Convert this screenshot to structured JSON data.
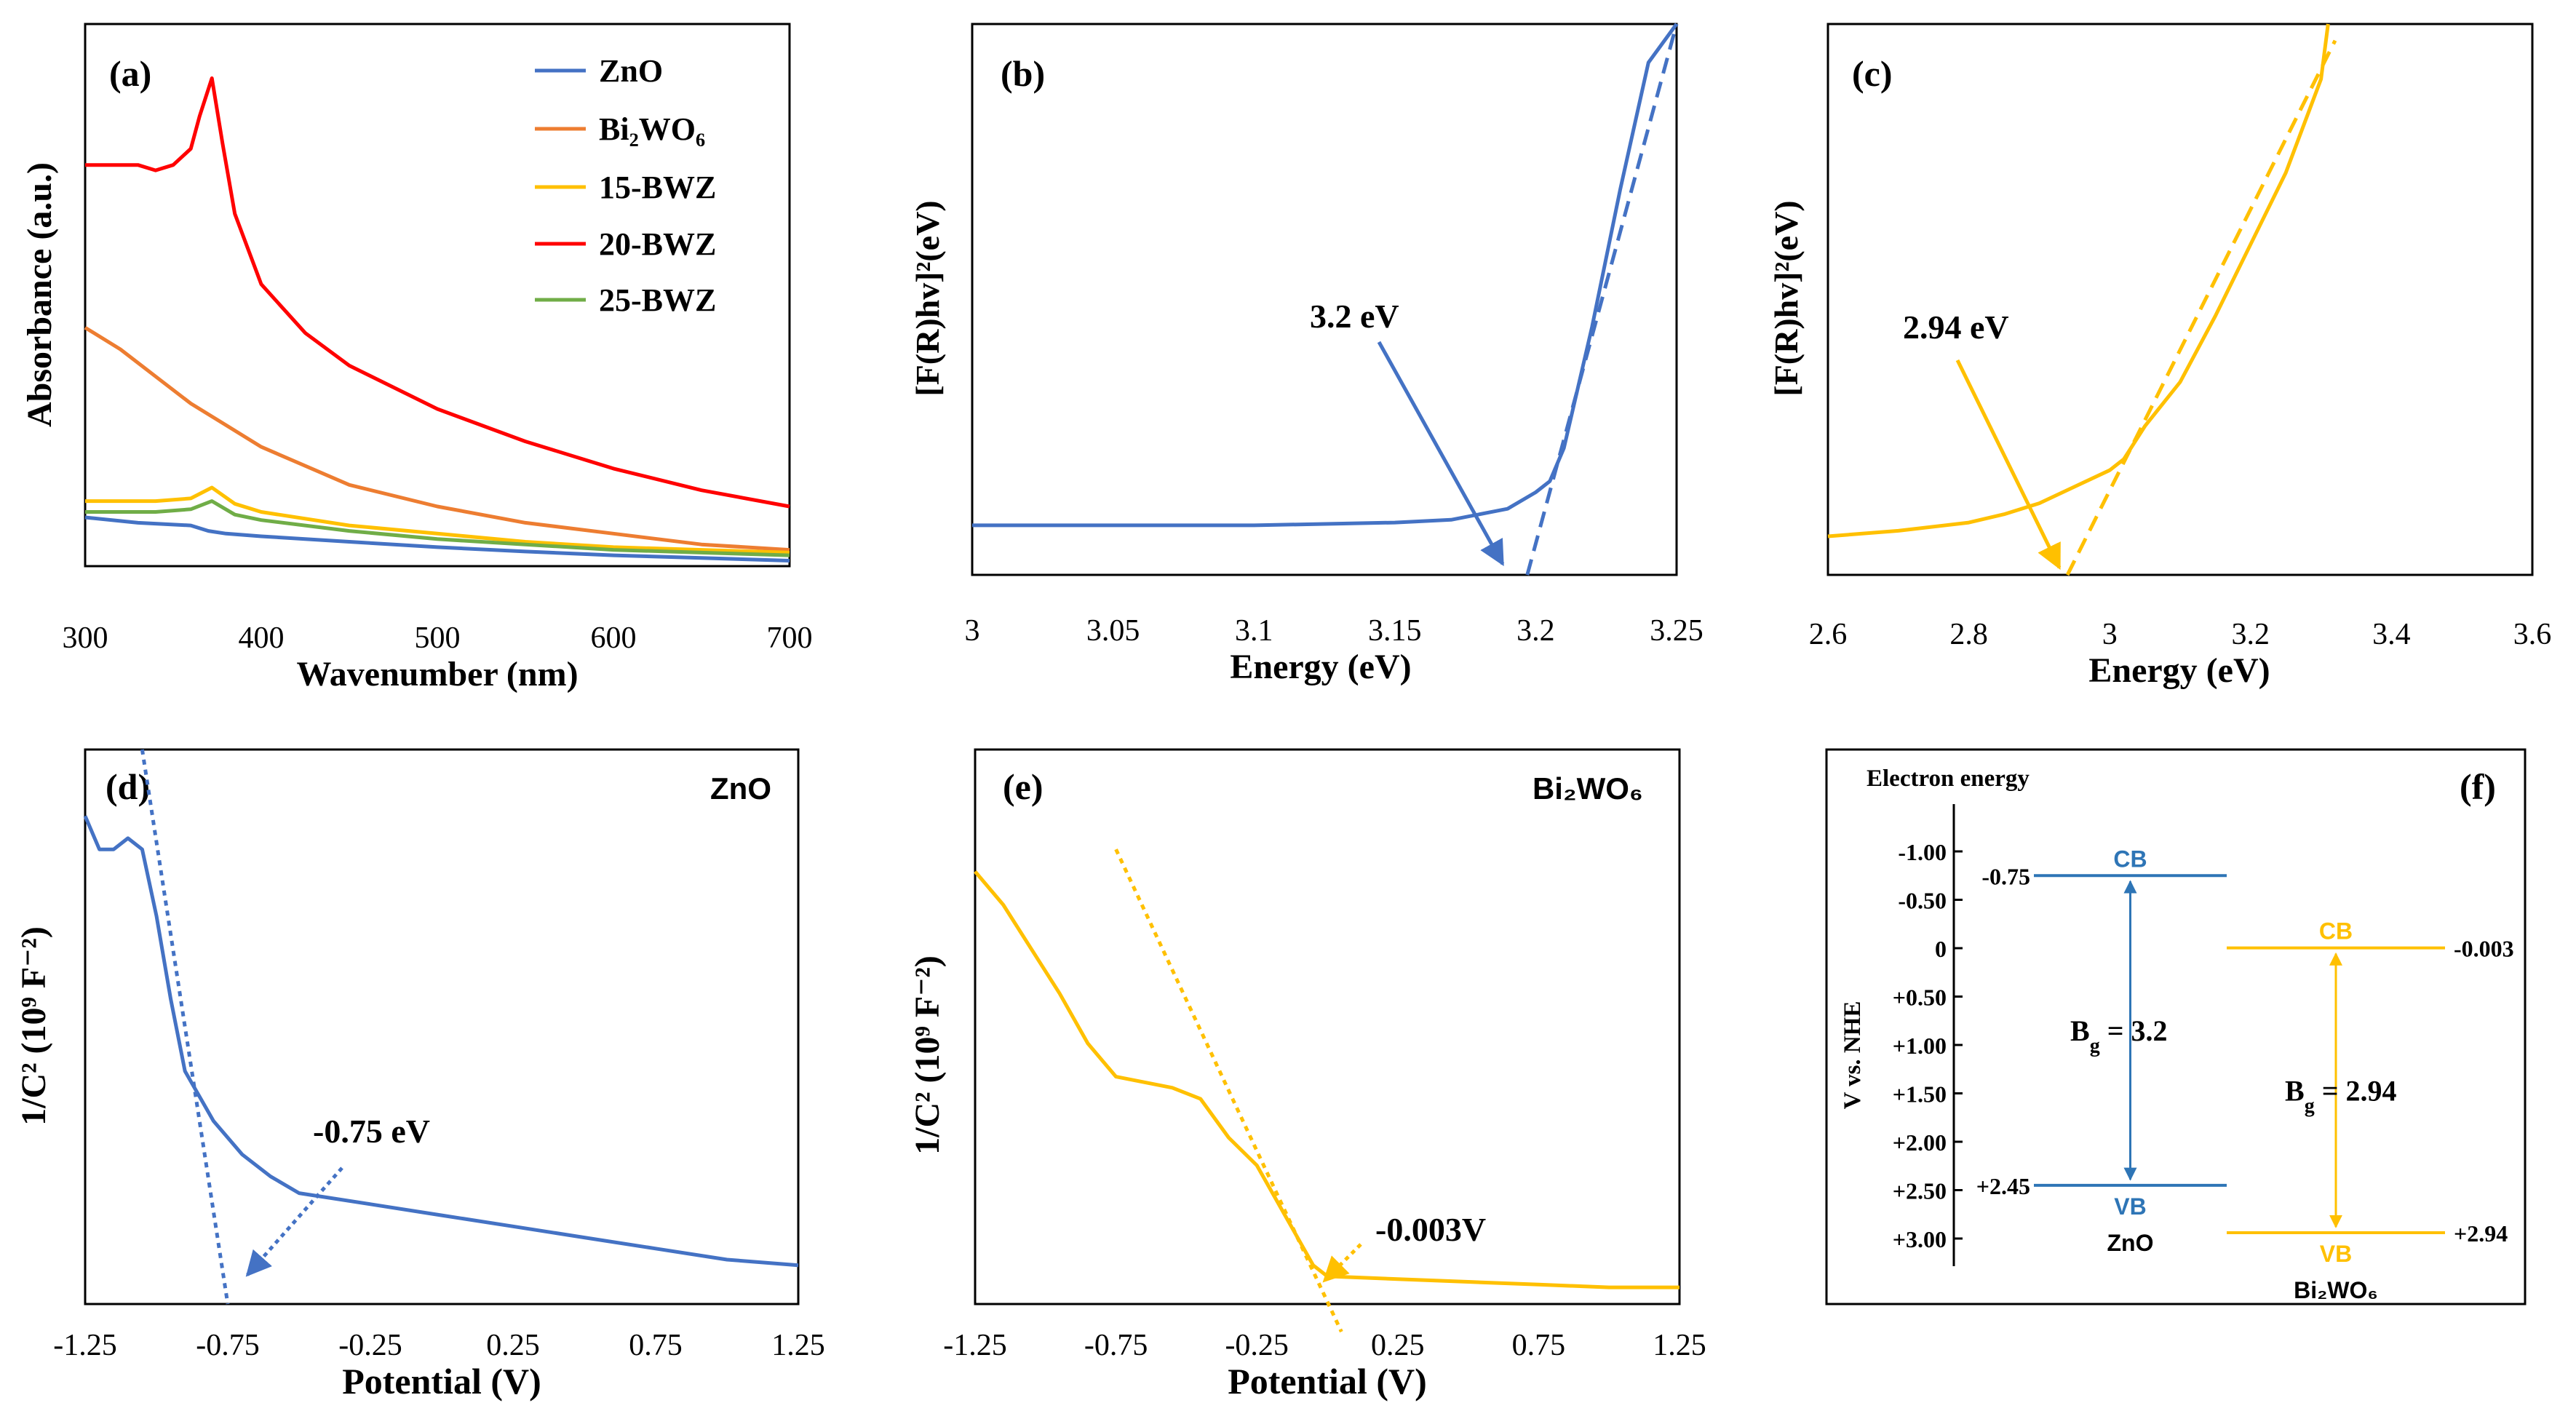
{
  "colors": {
    "zno": "#4472C4",
    "bi2wo6": "#ED7D31",
    "bwz15": "#FFC000",
    "bwz20": "#FF0000",
    "bwz25": "#70AD47",
    "axis": "#000000"
  },
  "chart_data": [
    {
      "panel": "a",
      "type": "line",
      "panel_label": "(a)",
      "xlabel": "Wavenumber (nm)",
      "ylabel": "Absorbance (a.u.)",
      "xlim": [
        300,
        700
      ],
      "ylim": [
        0,
        1
      ],
      "xticks": [
        "300",
        "400",
        "500",
        "600",
        "700"
      ],
      "legend": [
        "ZnO",
        "Bi₂WO₆",
        "15-BWZ",
        "20-BWZ",
        "25-BWZ"
      ],
      "series": [
        {
          "name": "ZnO",
          "x": [
            300,
            330,
            360,
            370,
            380,
            400,
            450,
            500,
            550,
            600,
            650,
            700
          ],
          "y": [
            0.09,
            0.08,
            0.075,
            0.065,
            0.06,
            0.055,
            0.045,
            0.035,
            0.027,
            0.02,
            0.015,
            0.01
          ]
        },
        {
          "name": "Bi2WO6",
          "x": [
            300,
            320,
            340,
            360,
            380,
            400,
            450,
            500,
            550,
            600,
            650,
            700
          ],
          "y": [
            0.44,
            0.4,
            0.35,
            0.3,
            0.26,
            0.22,
            0.15,
            0.11,
            0.08,
            0.06,
            0.04,
            0.03
          ]
        },
        {
          "name": "15-BWZ",
          "x": [
            300,
            340,
            360,
            372,
            385,
            400,
            450,
            500,
            550,
            600,
            650,
            700
          ],
          "y": [
            0.12,
            0.12,
            0.125,
            0.145,
            0.115,
            0.1,
            0.075,
            0.06,
            0.045,
            0.035,
            0.03,
            0.025
          ]
        },
        {
          "name": "20-BWZ",
          "x": [
            300,
            330,
            340,
            350,
            360,
            365,
            372,
            378,
            385,
            400,
            425,
            450,
            500,
            550,
            600,
            650,
            700
          ],
          "y": [
            0.74,
            0.74,
            0.73,
            0.74,
            0.77,
            0.83,
            0.9,
            0.78,
            0.65,
            0.52,
            0.43,
            0.37,
            0.29,
            0.23,
            0.18,
            0.14,
            0.11
          ]
        },
        {
          "name": "25-BWZ",
          "x": [
            300,
            340,
            360,
            372,
            385,
            400,
            450,
            500,
            550,
            600,
            650,
            700
          ],
          "y": [
            0.1,
            0.1,
            0.105,
            0.12,
            0.095,
            0.085,
            0.065,
            0.05,
            0.04,
            0.03,
            0.025,
            0.02
          ]
        }
      ]
    },
    {
      "panel": "b",
      "type": "line",
      "panel_label": "(b)",
      "xlabel": "Energy (eV)",
      "ylabel": "[F(R)hv]²(eV)",
      "xlim": [
        3.0,
        3.25
      ],
      "ylim": [
        0,
        1
      ],
      "xticks": [
        "3",
        "3.05",
        "3.1",
        "3.15",
        "3.2",
        "3.25"
      ],
      "annotation": "3.2 eV",
      "series": [
        {
          "name": "ZnO",
          "x": [
            3.0,
            3.05,
            3.1,
            3.15,
            3.17,
            3.19,
            3.2,
            3.205,
            3.21,
            3.22,
            3.23,
            3.24,
            3.25
          ],
          "y": [
            0.09,
            0.09,
            0.09,
            0.095,
            0.1,
            0.12,
            0.15,
            0.17,
            0.23,
            0.45,
            0.7,
            0.93,
            1.0
          ]
        },
        {
          "name": "Tangent",
          "x": [
            3.197,
            3.25
          ],
          "y": [
            0.0,
            1.0
          ]
        }
      ]
    },
    {
      "panel": "c",
      "type": "line",
      "panel_label": "(c)",
      "xlabel": "Energy (eV)",
      "ylabel": "[F(R)hv]²(eV)",
      "xlim": [
        2.6,
        3.6
      ],
      "ylim": [
        0,
        1
      ],
      "xticks": [
        "2.6",
        "2.8",
        "3",
        "3.2",
        "3.4",
        "3.6"
      ],
      "annotation": "2.94 eV",
      "series": [
        {
          "name": "Bi2WO6",
          "x": [
            2.6,
            2.7,
            2.8,
            2.85,
            2.9,
            2.95,
            3.0,
            3.02,
            3.05,
            3.1,
            3.15,
            3.2,
            3.25,
            3.3,
            3.31
          ],
          "y": [
            0.07,
            0.08,
            0.095,
            0.11,
            0.13,
            0.16,
            0.19,
            0.21,
            0.27,
            0.35,
            0.47,
            0.6,
            0.73,
            0.9,
            1.0
          ]
        },
        {
          "name": "Tangent",
          "x": [
            2.94,
            3.32
          ],
          "y": [
            0.0,
            0.97
          ]
        }
      ]
    },
    {
      "panel": "d",
      "type": "line",
      "panel_label": "(d)",
      "material": "ZnO",
      "xlabel": "Potential (V)",
      "ylabel": "1/C² (10⁹ F⁻²)",
      "xlim": [
        -1.25,
        1.25
      ],
      "ylim": [
        0,
        1
      ],
      "xticks": [
        "-1.25",
        "-0.75",
        "-0.25",
        "0.25",
        "0.75",
        "1.25"
      ],
      "annotation": "-0.75 eV",
      "series": [
        {
          "name": "ZnO",
          "x": [
            -1.25,
            -1.2,
            -1.15,
            -1.1,
            -1.05,
            -1.0,
            -0.95,
            -0.9,
            -0.8,
            -0.7,
            -0.6,
            -0.5,
            -0.25,
            0.0,
            0.25,
            0.5,
            0.75,
            1.0,
            1.25
          ],
          "y": [
            0.88,
            0.82,
            0.82,
            0.84,
            0.82,
            0.7,
            0.55,
            0.42,
            0.33,
            0.27,
            0.23,
            0.2,
            0.18,
            0.16,
            0.14,
            0.12,
            0.1,
            0.08,
            0.07
          ]
        },
        {
          "name": "Tangent",
          "x": [
            -1.05,
            -0.75
          ],
          "y": [
            1.0,
            0.0
          ]
        }
      ]
    },
    {
      "panel": "e",
      "type": "line",
      "panel_label": "(e)",
      "material": "Bi₂WO₆",
      "xlabel": "Potential (V)",
      "ylabel": "1/C² (10⁹ F⁻²)",
      "xlim": [
        -1.25,
        1.25
      ],
      "ylim": [
        0,
        1
      ],
      "xticks": [
        "-1.25",
        "-0.75",
        "-0.25",
        "0.25",
        "0.75",
        "1.25"
      ],
      "annotation": "-0.003V",
      "series": [
        {
          "name": "Bi2WO6",
          "x": [
            -1.25,
            -1.15,
            -1.05,
            -0.95,
            -0.85,
            -0.75,
            -0.65,
            -0.55,
            -0.45,
            -0.35,
            -0.25,
            -0.15,
            -0.05,
            0.0,
            0.25,
            0.5,
            0.75,
            1.0,
            1.25
          ],
          "y": [
            0.78,
            0.72,
            0.64,
            0.56,
            0.47,
            0.41,
            0.4,
            0.39,
            0.37,
            0.3,
            0.25,
            0.16,
            0.07,
            0.05,
            0.045,
            0.04,
            0.035,
            0.03,
            0.03
          ]
        },
        {
          "name": "Tangent",
          "x": [
            -0.75,
            0.05
          ],
          "y": [
            0.82,
            -0.05
          ]
        }
      ]
    },
    {
      "panel": "f",
      "type": "band-diagram",
      "panel_label": "(f)",
      "title": "Electron energy",
      "ylabel": "V vs. NHE",
      "yticks": [
        "-1.00",
        "-0.50",
        "0",
        "+0.50",
        "+1.00",
        "+1.50",
        "+2.00",
        "+2.50",
        "+3.00"
      ],
      "ytick_values": [
        -1.0,
        -0.5,
        0,
        0.5,
        1.0,
        1.5,
        2.0,
        2.5,
        3.0
      ],
      "materials": [
        {
          "name": "ZnO",
          "cb": -0.75,
          "vb": 2.45,
          "cb_label": "-0.75",
          "vb_label": "+2.45",
          "cb_text": "CB",
          "vb_text": "VB",
          "bandgap_label": "B",
          "bandgap_sub": "g",
          "bandgap_value": " = 3.2"
        },
        {
          "name": "Bi₂WO₆",
          "cb": -0.003,
          "vb": 2.94,
          "cb_label": "-0.003",
          "vb_label": "+2.94",
          "cb_text": "CB",
          "vb_text": "VB",
          "bandgap_label": "B",
          "bandgap_sub": "g",
          "bandgap_value": " = 2.94"
        }
      ]
    }
  ]
}
